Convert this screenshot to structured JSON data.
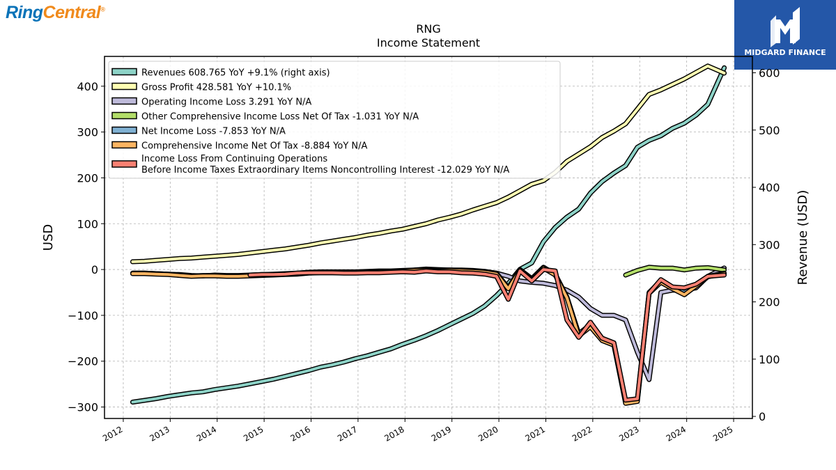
{
  "header": {
    "brand_left_part1": "Ring",
    "brand_left_part2": "Central",
    "brand_left_mark": "®",
    "brand_right": "MIDGARD FINANCE"
  },
  "colors": {
    "revenues": "#8dd3c7",
    "gross_profit": "#ffffb3",
    "operating_income": "#bebada",
    "other_comprehensive": "#b3de69",
    "net_income": "#80b1d3",
    "comprehensive_income": "#fdb462",
    "pretax_income": "#fb8072",
    "brand_blue": "#0a73b8",
    "brand_orange": "#f08a1c",
    "badge_bg": "#2457a8"
  },
  "chart_data": {
    "type": "line",
    "title": "RNG",
    "subtitle": "Income Statement",
    "ylabel": "USD",
    "ylabel_right": "Revenue (USD)",
    "ylim": [
      -325,
      465
    ],
    "ylim_right": [
      -3.6,
      628.6
    ],
    "xlim": [
      2011.6,
      2025.4
    ],
    "grid": true,
    "legend_position": "top-left",
    "yticks": [
      -300,
      -200,
      -100,
      0,
      100,
      200,
      300,
      400
    ],
    "ytick_labels": [
      "−300",
      "−200",
      "−100",
      "0",
      "100",
      "200",
      "300",
      "400"
    ],
    "yticks_right": [
      0,
      100,
      200,
      300,
      400,
      500,
      600
    ],
    "ytick_labels_right": [
      "0",
      "100",
      "200",
      "300",
      "400",
      "500",
      "600"
    ],
    "xticks": [
      2012,
      2013,
      2014,
      2015,
      2016,
      2017,
      2018,
      2019,
      2020,
      2021,
      2022,
      2023,
      2024,
      2025
    ],
    "xtick_labels": [
      "2012",
      "2013",
      "2014",
      "2015",
      "2016",
      "2017",
      "2018",
      "2019",
      "2020",
      "2021",
      "2022",
      "2023",
      "2024",
      "2025"
    ],
    "series": [
      {
        "key": "revenues",
        "legend_label": "Revenues  608.765 YoY +9.1% (right axis)",
        "legend_lines": [
          "Revenues  608.765 YoY +9.1% (right axis)"
        ],
        "axis": "right",
        "x": [
          2012.2,
          2012.45,
          2012.7,
          2012.95,
          2013.2,
          2013.45,
          2013.7,
          2013.95,
          2014.2,
          2014.45,
          2014.7,
          2014.95,
          2015.2,
          2015.45,
          2015.7,
          2015.95,
          2016.2,
          2016.45,
          2016.7,
          2016.95,
          2017.2,
          2017.45,
          2017.7,
          2017.95,
          2018.2,
          2018.45,
          2018.7,
          2018.95,
          2019.2,
          2019.45,
          2019.7,
          2019.95,
          2020.2,
          2020.45,
          2020.7,
          2020.95,
          2021.2,
          2021.45,
          2021.7,
          2021.95,
          2022.2,
          2022.45,
          2022.7,
          2022.95,
          2023.2,
          2023.45,
          2023.7,
          2023.95,
          2024.2,
          2024.45,
          2024.8
        ],
        "y": [
          25,
          28,
          31,
          35,
          38,
          41,
          43,
          47,
          50,
          53,
          57,
          61,
          65,
          70,
          75,
          80,
          86,
          90,
          95,
          101,
          106,
          112,
          118,
          126,
          133,
          141,
          150,
          160,
          170,
          180,
          193,
          211,
          232,
          257,
          268,
          305,
          330,
          348,
          362,
          390,
          410,
          425,
          438,
          470,
          482,
          490,
          503,
          512,
          526,
          545,
          608.8
        ]
      },
      {
        "key": "gross_profit",
        "legend_label": "Gross Profit  428.581 YoY +10.1%",
        "legend_lines": [
          "Gross Profit  428.581 YoY +10.1%"
        ],
        "axis": "left",
        "x": [
          2012.2,
          2012.45,
          2012.7,
          2012.95,
          2013.2,
          2013.45,
          2013.7,
          2013.95,
          2014.2,
          2014.45,
          2014.7,
          2014.95,
          2015.2,
          2015.45,
          2015.7,
          2015.95,
          2016.2,
          2016.45,
          2016.7,
          2016.95,
          2017.2,
          2017.45,
          2017.7,
          2017.95,
          2018.2,
          2018.45,
          2018.7,
          2018.95,
          2019.2,
          2019.45,
          2019.7,
          2019.95,
          2020.2,
          2020.45,
          2020.7,
          2020.95,
          2021.2,
          2021.45,
          2021.7,
          2021.95,
          2022.2,
          2022.45,
          2022.7,
          2022.95,
          2023.2,
          2023.45,
          2023.7,
          2023.95,
          2024.2,
          2024.45,
          2024.8
        ],
        "y": [
          17,
          18,
          20,
          22,
          24,
          25,
          27,
          29,
          31,
          33,
          36,
          39,
          42,
          45,
          49,
          53,
          58,
          62,
          66,
          70,
          75,
          79,
          84,
          88,
          94,
          100,
          108,
          114,
          121,
          130,
          138,
          146,
          158,
          172,
          186,
          194,
          212,
          236,
          252,
          268,
          288,
          302,
          318,
          350,
          382,
          392,
          404,
          416,
          430,
          444,
          428.6
        ]
      },
      {
        "key": "operating_income",
        "legend_label": "Operating Income Loss  3.291 YoY N/A",
        "legend_lines": [
          "Operating Income Loss  3.291 YoY N/A"
        ],
        "axis": "left",
        "x": [
          2012.2,
          2012.45,
          2012.7,
          2012.95,
          2013.2,
          2013.45,
          2013.7,
          2013.95,
          2014.2,
          2014.45,
          2014.7,
          2014.95,
          2015.2,
          2015.45,
          2015.7,
          2015.95,
          2016.2,
          2016.45,
          2016.7,
          2016.95,
          2017.2,
          2017.45,
          2017.7,
          2017.95,
          2018.2,
          2018.45,
          2018.7,
          2018.95,
          2019.2,
          2019.45,
          2019.7,
          2019.95,
          2020.2,
          2020.45,
          2020.7,
          2020.95,
          2021.2,
          2021.45,
          2021.7,
          2021.95,
          2022.2,
          2022.45,
          2022.7,
          2022.95,
          2023.2,
          2023.45,
          2023.7,
          2023.95,
          2024.2,
          2024.45,
          2024.8
        ],
        "y": [
          -8,
          -8,
          -9,
          -10,
          -11,
          -13,
          -14,
          -12,
          -13,
          -13,
          -12,
          -11,
          -10,
          -9,
          -8,
          -6,
          -5,
          -5,
          -5,
          -5,
          -4,
          -3,
          -3,
          -2,
          -1,
          1,
          0,
          -1,
          -1,
          -2,
          -4,
          -8,
          -15,
          -25,
          -28,
          -30,
          -35,
          -45,
          -60,
          -85,
          -100,
          -100,
          -110,
          -180,
          -240,
          -50,
          -45,
          -45,
          -40,
          -15,
          3.3
        ]
      },
      {
        "key": "other_comprehensive",
        "legend_label": "Other Comprehensive Income Loss Net Of Tax  -1.031 YoY N/A",
        "legend_lines": [
          "Other Comprehensive Income Loss Net Of Tax  -1.031 YoY N/A"
        ],
        "axis": "left",
        "x": [
          2022.7,
          2022.95,
          2023.2,
          2023.45,
          2023.7,
          2023.95,
          2024.2,
          2024.45,
          2024.8
        ],
        "y": [
          -12,
          -2,
          5,
          3,
          3,
          -1,
          3,
          4,
          -1.0
        ]
      },
      {
        "key": "net_income",
        "legend_label": "Net Income Loss  -7.853 YoY N/A",
        "legend_lines": [
          "Net Income Loss  -7.853 YoY N/A"
        ],
        "axis": "left",
        "x": [
          2012.2,
          2012.45,
          2012.7,
          2012.95,
          2013.2,
          2013.45,
          2013.7,
          2013.95,
          2014.2,
          2014.45,
          2014.7,
          2014.95,
          2015.2,
          2015.45,
          2015.7,
          2015.95,
          2016.2,
          2016.45,
          2016.7,
          2016.95,
          2017.2,
          2017.45,
          2017.7,
          2017.95,
          2018.2,
          2018.45,
          2018.7,
          2018.95,
          2019.2,
          2019.45,
          2019.7,
          2019.95,
          2020.2,
          2020.45,
          2020.7,
          2020.95,
          2021.2,
          2021.45,
          2021.7,
          2021.95,
          2022.2,
          2022.45,
          2022.7,
          2022.95,
          2023.2,
          2023.45,
          2023.7,
          2023.95,
          2024.2,
          2024.45,
          2024.8
        ],
        "y": [
          -8,
          -8,
          -9,
          -10,
          -12,
          -14,
          -13,
          -13,
          -14,
          -14,
          -13,
          -12,
          -11,
          -10,
          -9,
          -7,
          -6,
          -6,
          -6,
          -6,
          -6,
          -5,
          -4,
          -3,
          -1,
          0,
          -2,
          -1,
          -2,
          -3,
          -5,
          -8,
          -40,
          0,
          -20,
          5,
          -10,
          -60,
          -140,
          -120,
          -150,
          -160,
          -290,
          -285,
          -50,
          -25,
          -40,
          -50,
          -35,
          -15,
          -7.9
        ]
      },
      {
        "key": "comprehensive_income",
        "legend_label": "Comprehensive Income Net Of Tax  -8.884 YoY N/A",
        "legend_lines": [
          "Comprehensive Income Net Of Tax  -8.884 YoY N/A"
        ],
        "axis": "left",
        "x": [
          2012.2,
          2012.45,
          2012.7,
          2012.95,
          2013.2,
          2013.45,
          2013.7,
          2013.95,
          2014.2,
          2014.45,
          2014.7,
          2014.95,
          2015.2,
          2015.45,
          2015.7,
          2015.95,
          2016.2,
          2016.45,
          2016.7,
          2016.95,
          2017.2,
          2017.45,
          2017.7,
          2017.95,
          2018.2,
          2018.45,
          2018.7,
          2018.95,
          2019.2,
          2019.45,
          2019.7,
          2019.95,
          2020.2,
          2020.45,
          2020.7,
          2020.95,
          2021.2,
          2021.45,
          2021.7,
          2021.95,
          2022.2,
          2022.45,
          2022.7,
          2022.95,
          2023.2,
          2023.45,
          2023.7,
          2023.95,
          2024.2,
          2024.45,
          2024.8
        ],
        "y": [
          -9,
          -9,
          -10,
          -11,
          -13,
          -15,
          -14,
          -14,
          -15,
          -15,
          -14,
          -13,
          -12,
          -11,
          -10,
          -8,
          -7,
          -7,
          -7,
          -7,
          -6,
          -5,
          -4,
          -3,
          -2,
          -1,
          -3,
          -2,
          -3,
          -4,
          -6,
          -10,
          -42,
          -2,
          -22,
          3,
          -12,
          -62,
          -145,
          -125,
          -155,
          -165,
          -292,
          -288,
          -52,
          -28,
          -42,
          -55,
          -36,
          -16,
          -8.9
        ]
      },
      {
        "key": "pretax_income",
        "legend_label": "Income Loss From Continuing Operations Before Income Taxes Extraordinary Items Noncontrolling Interest  -12.029 YoY N/A",
        "legend_lines": [
          "Income Loss From Continuing Operations",
          "Before Income Taxes Extraordinary Items Noncontrolling Interest  -12.029 YoY N/A"
        ],
        "axis": "left",
        "x": [
          2014.7,
          2014.95,
          2015.2,
          2015.45,
          2015.7,
          2015.95,
          2016.2,
          2016.45,
          2016.7,
          2016.95,
          2017.2,
          2017.45,
          2017.7,
          2017.95,
          2018.2,
          2018.45,
          2018.7,
          2018.95,
          2019.2,
          2019.45,
          2019.7,
          2019.95,
          2020.2,
          2020.45,
          2020.7,
          2020.95,
          2021.2,
          2021.45,
          2021.7,
          2021.95,
          2022.2,
          2022.45,
          2022.7,
          2022.95,
          2023.2,
          2023.45,
          2023.7,
          2023.95,
          2024.2,
          2024.45,
          2024.8
        ],
        "y": [
          -12,
          -11,
          -11,
          -10,
          -8,
          -7,
          -7,
          -7,
          -8,
          -8,
          -7,
          -7,
          -6,
          -5,
          -6,
          -3,
          -5,
          -5,
          -7,
          -8,
          -10,
          -15,
          -65,
          -3,
          -25,
          0,
          -3,
          -110,
          -148,
          -115,
          -150,
          -160,
          -285,
          -282,
          -52,
          -22,
          -38,
          -40,
          -32,
          -15,
          -12.0
        ]
      }
    ]
  }
}
